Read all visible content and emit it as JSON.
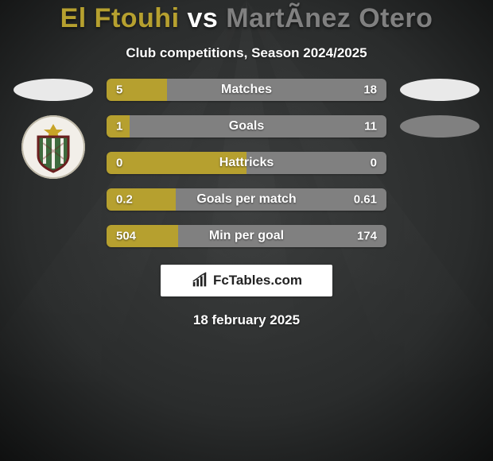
{
  "background": {
    "base_color": "#2a2c2c",
    "sweep_color": "#3c3e3e",
    "vignette": "#0e0f0f"
  },
  "header": {
    "title_left": "El Ftouhi",
    "title_vs": " vs ",
    "title_right": "MartÃ­nez Otero",
    "title_color_left": "#b6a02f",
    "title_color_vs": "#ffffff",
    "title_color_right": "#808080",
    "title_fontsize": 34,
    "subtitle": "Club competitions, Season 2024/2025",
    "subtitle_fontsize": 17
  },
  "players": {
    "left": {
      "pill_color": "#e9e9e9",
      "crest": {
        "bg": "#f2efe9",
        "shield_fill": "#3e6b3e",
        "shield_stroke": "#6b1f1f",
        "stripes": "#f2efe9",
        "star_color": "#c8a427"
      }
    },
    "right": {
      "pill_color_1": "#e9e9e9",
      "pill_color_2": "#808080"
    }
  },
  "stats": {
    "bar_color_left": "#b6a02f",
    "bar_color_right": "#808080",
    "label_fontsize": 16,
    "value_fontsize": 15,
    "rows": [
      {
        "label": "Matches",
        "left_val": "5",
        "right_val": "18",
        "left_pct": 21.7,
        "type": "higher_better"
      },
      {
        "label": "Goals",
        "left_val": "1",
        "right_val": "11",
        "left_pct": 8.3,
        "type": "higher_better"
      },
      {
        "label": "Hattricks",
        "left_val": "0",
        "right_val": "0",
        "left_pct": 50.0,
        "type": "higher_better"
      },
      {
        "label": "Goals per match",
        "left_val": "0.2",
        "right_val": "0.61",
        "left_pct": 24.7,
        "type": "higher_better"
      },
      {
        "label": "Min per goal",
        "left_val": "504",
        "right_val": "174",
        "left_pct": 25.7,
        "type": "lower_better"
      }
    ]
  },
  "footer": {
    "brand_text": "FcTables.com",
    "brand_fontsize": 17,
    "brand_box_bg": "#ffffff",
    "date": "18 february 2025",
    "date_fontsize": 17
  }
}
